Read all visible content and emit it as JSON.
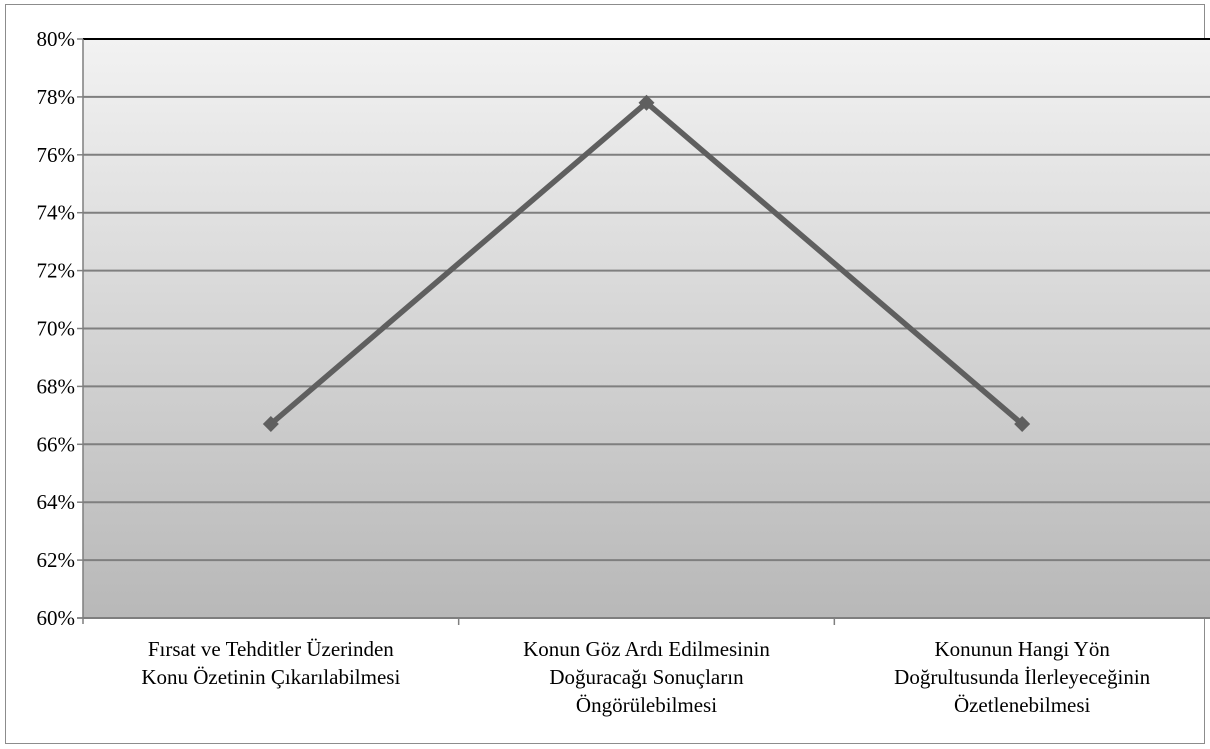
{
  "chart_data": {
    "type": "line",
    "title": "",
    "xlabel": "",
    "ylabel": "",
    "ylim": [
      0.6,
      0.8
    ],
    "yticks": [
      0.6,
      0.62,
      0.64,
      0.66,
      0.68,
      0.7,
      0.72,
      0.74,
      0.76,
      0.78,
      0.8
    ],
    "ytick_labels": [
      "60%",
      "62%",
      "64%",
      "66%",
      "68%",
      "70%",
      "72%",
      "74%",
      "76%",
      "78%",
      "80%"
    ],
    "grid": true,
    "legend": "none",
    "categories": [
      [
        "Fırsat ve Tehditler Üzerinden",
        "Konu Özetinin Çıkarılabilmesi"
      ],
      [
        "Konun Göz Ardı Edilmesinin",
        "Doğuracağı Sonuçların",
        "Öngörülebilmesi"
      ],
      [
        "Konunun Hangi Yön",
        "Doğrultusunda İlerleyeceğinin",
        "Özetlenebilmesi"
      ]
    ],
    "series": [
      {
        "values": [
          0.667,
          0.778,
          0.667
        ],
        "color": "#5f5f5f",
        "marker": "diamond"
      }
    ],
    "colors": {
      "plot_gradient_top": "#f2f2f2",
      "plot_gradient_bottom": "#b8b8b8",
      "gridline": "#7f7f7f",
      "axis": "#7f7f7f",
      "frame": "#8c8c8c"
    }
  }
}
